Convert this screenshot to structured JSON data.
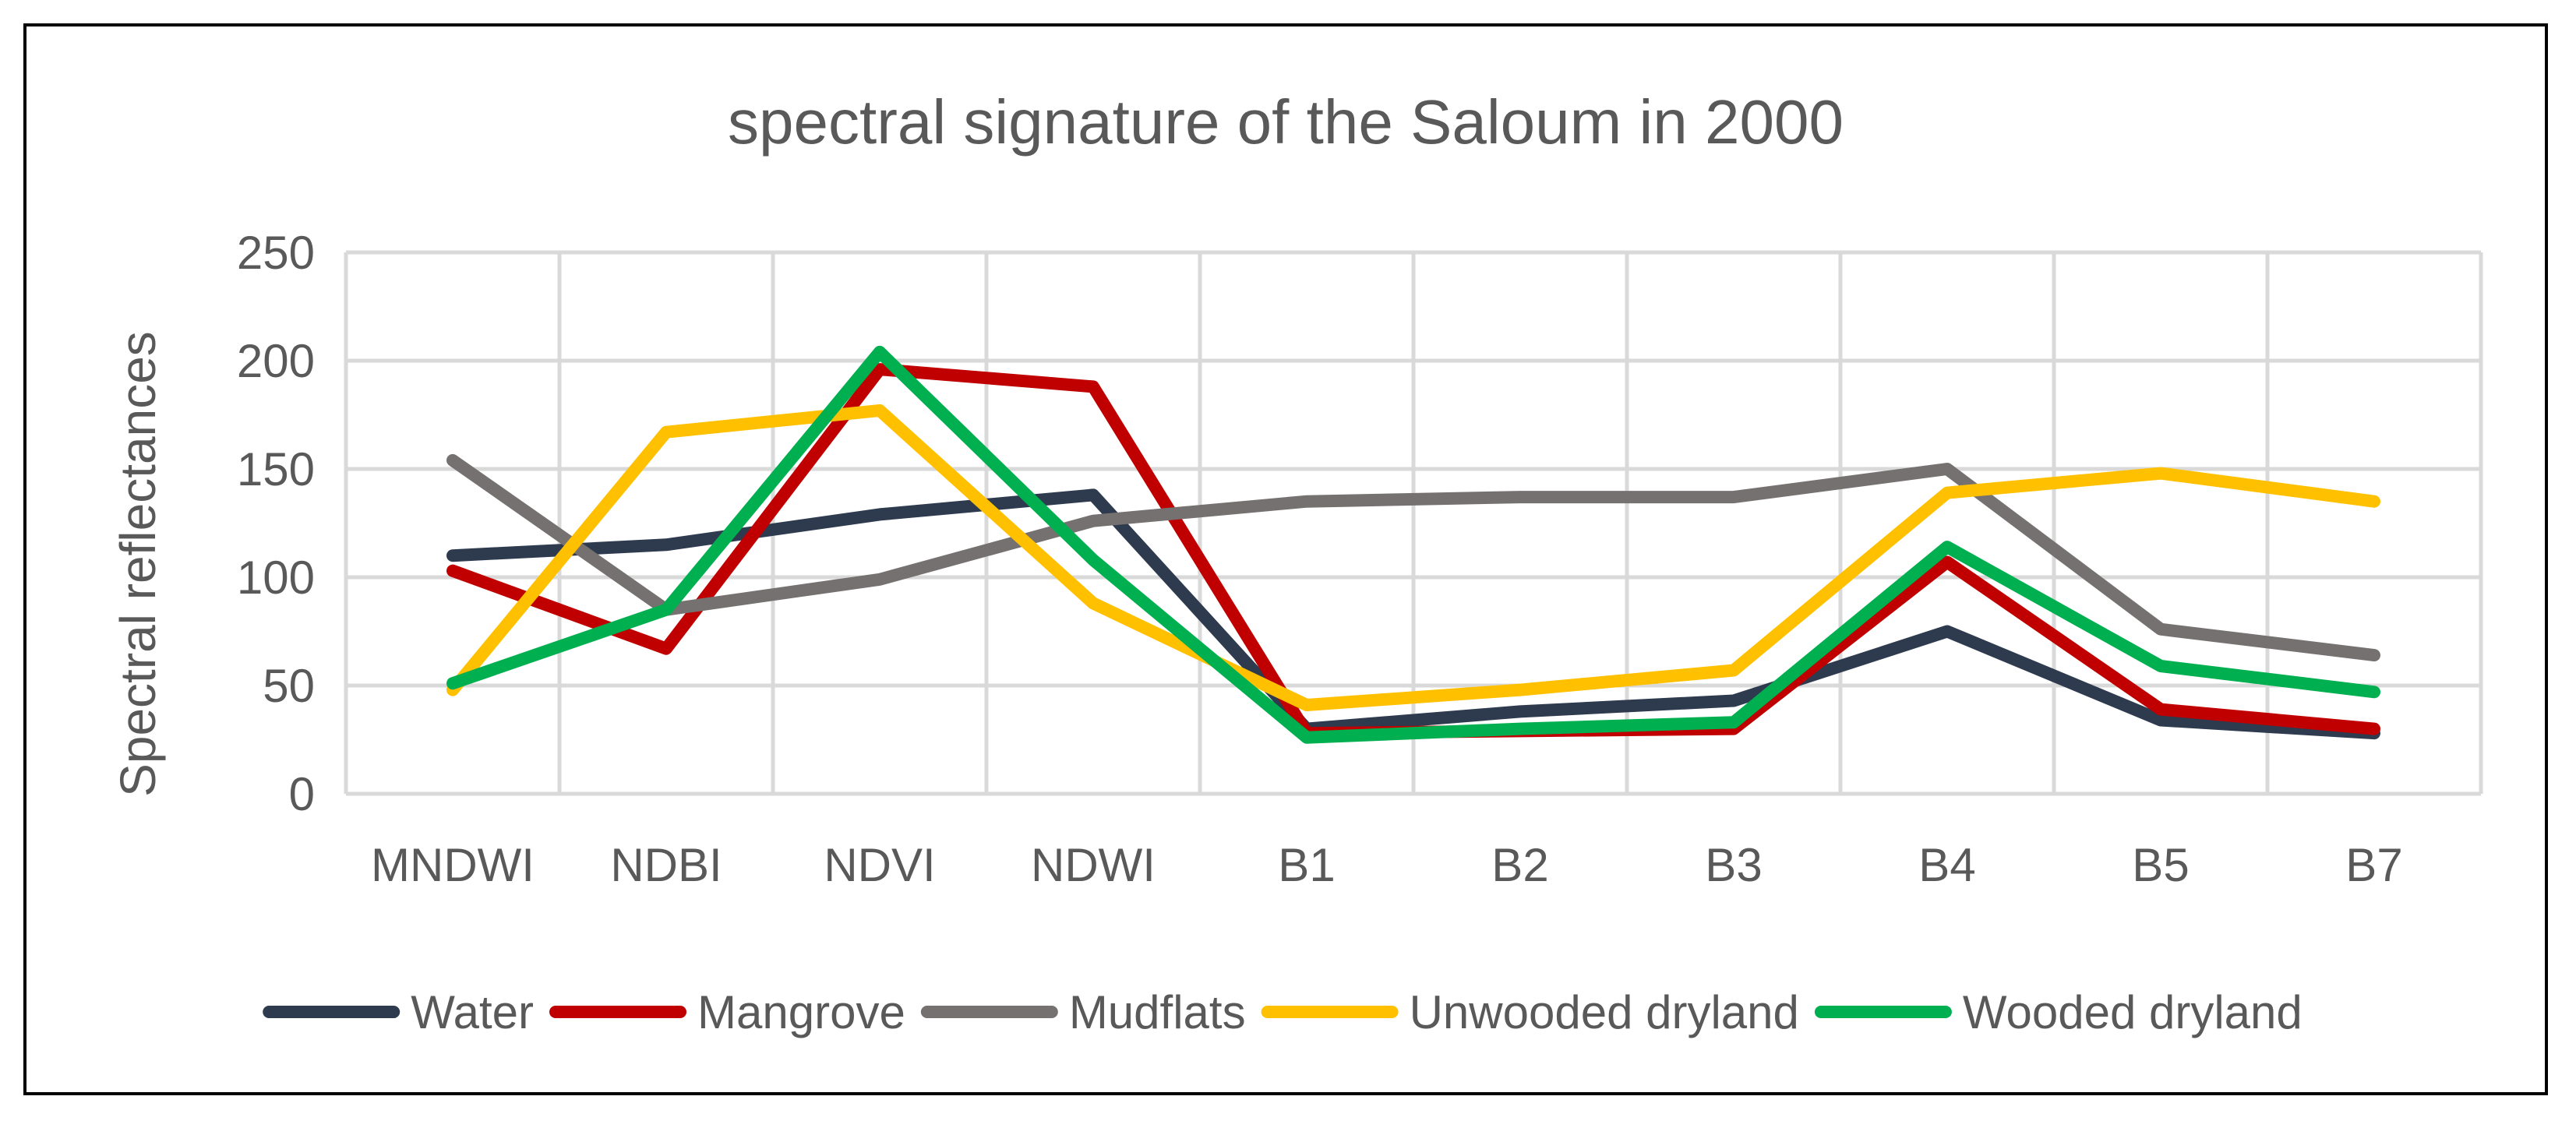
{
  "chart_data": {
    "type": "line",
    "title": "spectral signature of the Saloum in 2000",
    "xlabel": "",
    "ylabel": "Spectral reflectances",
    "categories": [
      "MNDWI",
      "NDBI",
      "NDVI",
      "NDWI",
      "B1",
      "B2",
      "B3",
      "B4",
      "B5",
      "B7"
    ],
    "ylim": [
      0,
      250
    ],
    "yticks": [
      0,
      50,
      100,
      150,
      200,
      250
    ],
    "grid": true,
    "legend_position": "bottom",
    "series": [
      {
        "name": "Water",
        "color": "#2e3b4e",
        "values": [
          110,
          115,
          129,
          138,
          30,
          38,
          43,
          75,
          34,
          28
        ]
      },
      {
        "name": "Mangrove",
        "color": "#c00000",
        "values": [
          103,
          67,
          196,
          188,
          28,
          29,
          30,
          107,
          39,
          30
        ]
      },
      {
        "name": "Mudflats",
        "color": "#767171",
        "values": [
          154,
          85,
          99,
          126,
          135,
          137,
          137,
          150,
          76,
          64
        ]
      },
      {
        "name": "Unwooded dryland",
        "color": "#ffc000",
        "values": [
          48,
          167,
          177,
          88,
          41,
          48,
          57,
          139,
          148,
          135
        ]
      },
      {
        "name": "Wooded dryland",
        "color": "#00b050",
        "values": [
          51,
          85,
          204,
          108,
          26,
          30,
          33,
          114,
          59,
          47
        ]
      }
    ]
  }
}
